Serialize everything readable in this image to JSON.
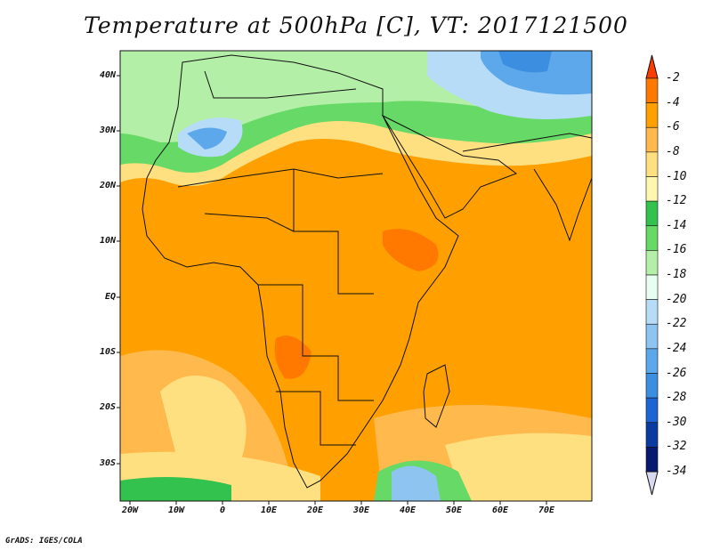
{
  "title": "Temperature at 500hPa [C], VT: 2017121500",
  "footer": "GrADS: IGES/COLA",
  "lat_labels": [
    "40N",
    "30N",
    "20N",
    "10N",
    "EQ",
    "10S",
    "20S",
    "30S"
  ],
  "lon_labels": [
    "20W",
    "10W",
    "0",
    "10E",
    "20E",
    "30E",
    "40E",
    "50E",
    "60E",
    "70E"
  ],
  "colorbar": {
    "colors": [
      "#ff3c00",
      "#ff7800",
      "#ffa000",
      "#ffb94d",
      "#ffe080",
      "#fff6b0",
      "#33c24d",
      "#66d966",
      "#b3efa6",
      "#e6fff2",
      "#b7dcf7",
      "#8dc4f0",
      "#5da8ea",
      "#3c8ee0",
      "#1e64d4",
      "#0a3ca0",
      "#081a70"
    ],
    "labels": [
      "-2",
      "-4",
      "-6",
      "-8",
      "-10",
      "-12",
      "-14",
      "-16",
      "-18",
      "-20",
      "-22",
      "-24",
      "-26",
      "-28",
      "-30",
      "-32",
      "-34"
    ]
  }
}
